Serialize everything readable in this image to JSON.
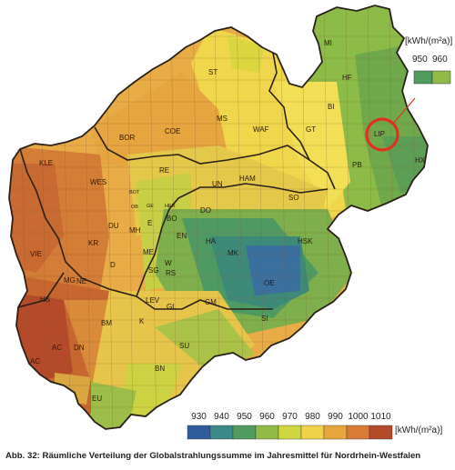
{
  "legend": {
    "unit_label": "[kWh/(m²a)]",
    "values": [
      "930",
      "940",
      "950",
      "960",
      "970",
      "980",
      "990",
      "1000",
      "1010"
    ],
    "colors": [
      "#2f5c9a",
      "#3a8a8a",
      "#4f9c5e",
      "#8fbb46",
      "#cfd63f",
      "#f0d24a",
      "#e8a53c",
      "#d87b34",
      "#b54a2a"
    ]
  },
  "inset_legend": {
    "unit_label": "[kWh/(m²a)]",
    "values": [
      "950",
      "960"
    ]
  },
  "districts": [
    {
      "code": "MI"
    },
    {
      "code": "HF"
    },
    {
      "code": "ST"
    },
    {
      "code": "BI"
    },
    {
      "code": "LIP"
    },
    {
      "code": "MS"
    },
    {
      "code": "WAF"
    },
    {
      "code": "GT"
    },
    {
      "code": "BOR"
    },
    {
      "code": "COE"
    },
    {
      "code": "HX"
    },
    {
      "code": "PB"
    },
    {
      "code": "KLE"
    },
    {
      "code": "WES"
    },
    {
      "code": "RE"
    },
    {
      "code": "UN"
    },
    {
      "code": "HAM"
    },
    {
      "code": "SO"
    },
    {
      "code": "BOT"
    },
    {
      "code": "GE"
    },
    {
      "code": "HER"
    },
    {
      "code": "BO"
    },
    {
      "code": "DO"
    },
    {
      "code": "OB"
    },
    {
      "code": "E"
    },
    {
      "code": "MH"
    },
    {
      "code": "DU"
    },
    {
      "code": "EN"
    },
    {
      "code": "HA"
    },
    {
      "code": "HSK"
    },
    {
      "code": "KR"
    },
    {
      "code": "ME"
    },
    {
      "code": "W"
    },
    {
      "code": "MK"
    },
    {
      "code": "VIE"
    },
    {
      "code": "D"
    },
    {
      "code": "NE"
    },
    {
      "code": "SG"
    },
    {
      "code": "RS"
    },
    {
      "code": "OE"
    },
    {
      "code": "MG"
    },
    {
      "code": "GL"
    },
    {
      "code": "GM"
    },
    {
      "code": "LEV"
    },
    {
      "code": "HS"
    },
    {
      "code": "K"
    },
    {
      "code": "BM"
    },
    {
      "code": "SI"
    },
    {
      "code": "AC"
    },
    {
      "code": "DN"
    },
    {
      "code": "SU"
    },
    {
      "code": "BN"
    },
    {
      "code": "EU"
    }
  ],
  "highlight": {
    "district": "LIP",
    "color": "#e0301e"
  },
  "caption": "Abb. 32: Räumliche Verteilung der Globalstrahlungssumme im Jahresmittel für Nordrhein-Westfalen"
}
